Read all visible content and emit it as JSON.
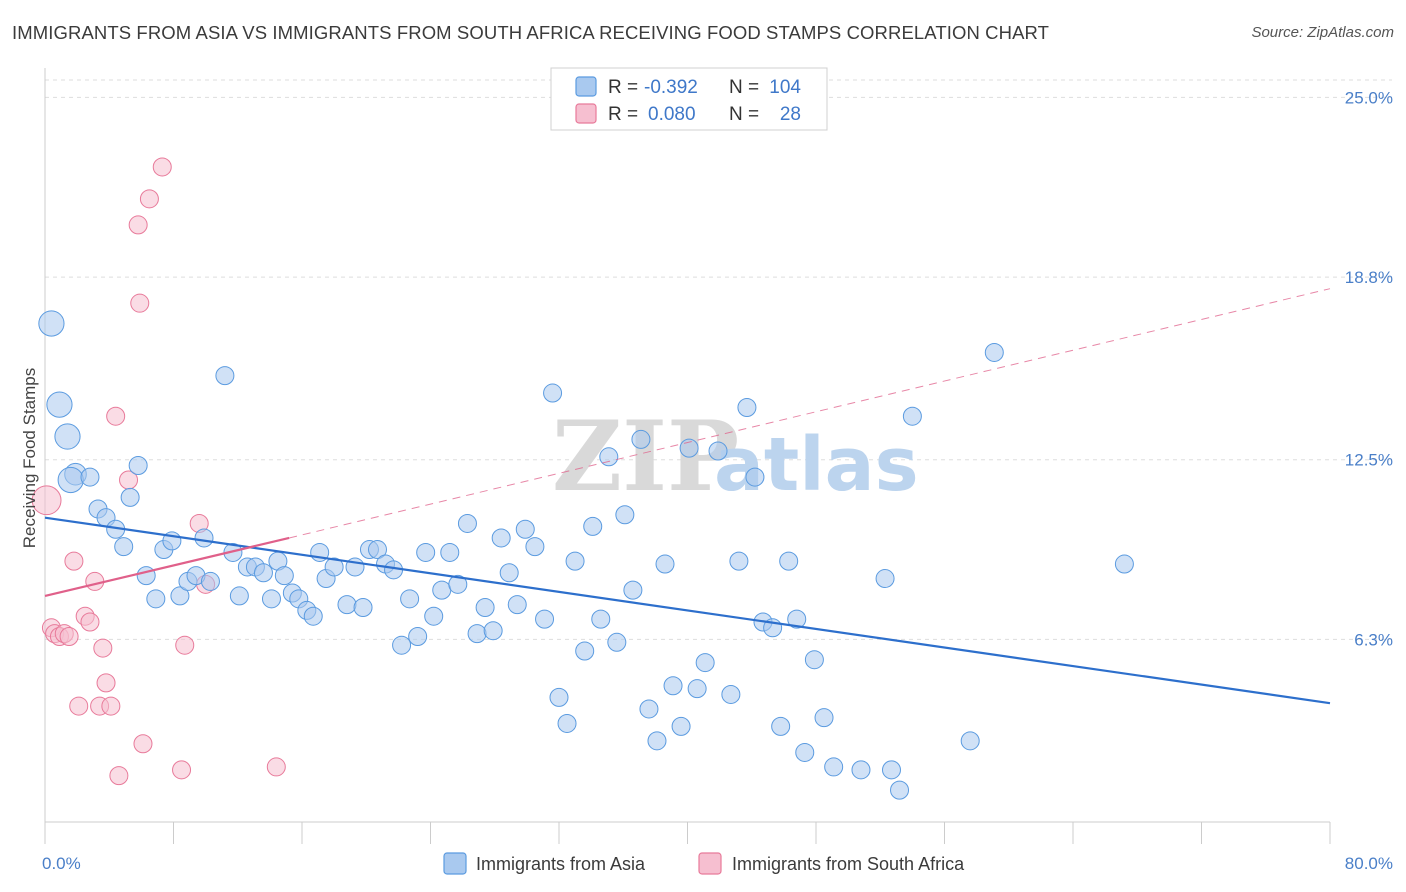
{
  "title": "IMMIGRANTS FROM ASIA VS IMMIGRANTS FROM SOUTH AFRICA RECEIVING FOOD STAMPS CORRELATION CHART",
  "source": "Source: ZipAtlas.com",
  "watermark": {
    "zip": "ZIP",
    "atlas": "atlas"
  },
  "colors": {
    "asia": "#5b9be0",
    "asia_fill": "#a9c9ef",
    "south_africa": "#e87a9a",
    "south_africa_fill": "#f6bfd0",
    "asia_line": "#2d6fcc",
    "sa_line": "#e0608a",
    "tick_text": "#4a7fc8",
    "grid": "#dddddd"
  },
  "legend": {
    "rows": [
      {
        "r_label": "R =",
        "r_value": "-0.392",
        "n_label": "N =",
        "n_value": "104"
      },
      {
        "r_label": "R =",
        "r_value": "0.080",
        "n_label": "N =",
        "n_value": "28"
      }
    ]
  },
  "chart_data": {
    "type": "scatter",
    "xlabel": "",
    "ylabel": "Receiving Food Stamps",
    "xlim": [
      0,
      80
    ],
    "ylim": [
      0,
      25.6
    ],
    "x_tick_labels": [
      {
        "value": 0,
        "label": "0.0%"
      },
      {
        "value": 80,
        "label": "80.0%"
      }
    ],
    "y_tick_labels": [
      {
        "value": 6.3,
        "label": "6.3%"
      },
      {
        "value": 12.5,
        "label": "12.5%"
      },
      {
        "value": 18.8,
        "label": "18.8%"
      },
      {
        "value": 25.0,
        "label": "25.0%"
      }
    ],
    "grid": true,
    "series": [
      {
        "name": "Immigrants from Asia",
        "r": -0.392,
        "n": 104,
        "trend": {
          "x0": 0,
          "y0": 10.5,
          "x1": 80,
          "y1": 4.1
        },
        "points": [
          [
            0.4,
            17.2,
            1.4
          ],
          [
            0.9,
            14.4,
            1.4
          ],
          [
            1.4,
            13.3,
            1.4
          ],
          [
            1.9,
            12.0,
            1.2
          ],
          [
            1.6,
            11.8,
            1.4
          ],
          [
            2.8,
            11.9,
            1.0
          ],
          [
            3.3,
            10.8,
            1.0
          ],
          [
            3.8,
            10.5,
            1.0
          ],
          [
            4.4,
            10.1,
            1.0
          ],
          [
            4.9,
            9.5,
            1.0
          ],
          [
            5.3,
            11.2,
            1.0
          ],
          [
            5.8,
            12.3,
            1.0
          ],
          [
            6.3,
            8.5,
            1.0
          ],
          [
            6.9,
            7.7,
            1.0
          ],
          [
            7.4,
            9.4,
            1.0
          ],
          [
            7.9,
            9.7,
            1.0
          ],
          [
            8.4,
            7.8,
            1.0
          ],
          [
            8.9,
            8.3,
            1.0
          ],
          [
            9.4,
            8.5,
            1.0
          ],
          [
            9.9,
            9.8,
            1.0
          ],
          [
            10.3,
            8.3,
            1.0
          ],
          [
            11.2,
            15.4,
            1.0
          ],
          [
            11.7,
            9.3,
            1.0
          ],
          [
            12.1,
            7.8,
            1.0
          ],
          [
            12.6,
            8.8,
            1.0
          ],
          [
            13.1,
            8.8,
            1.0
          ],
          [
            13.6,
            8.6,
            1.0
          ],
          [
            14.1,
            7.7,
            1.0
          ],
          [
            14.5,
            9.0,
            1.0
          ],
          [
            14.9,
            8.5,
            1.0
          ],
          [
            15.4,
            7.9,
            1.0
          ],
          [
            15.8,
            7.7,
            1.0
          ],
          [
            16.3,
            7.3,
            1.0
          ],
          [
            16.7,
            7.1,
            1.0
          ],
          [
            17.1,
            9.3,
            1.0
          ],
          [
            17.5,
            8.4,
            1.0
          ],
          [
            18.0,
            8.8,
            1.0
          ],
          [
            18.8,
            7.5,
            1.0
          ],
          [
            19.3,
            8.8,
            1.0
          ],
          [
            19.8,
            7.4,
            1.0
          ],
          [
            20.2,
            9.4,
            1.0
          ],
          [
            20.7,
            9.4,
            1.0
          ],
          [
            21.2,
            8.9,
            1.0
          ],
          [
            21.7,
            8.7,
            1.0
          ],
          [
            22.2,
            6.1,
            1.0
          ],
          [
            22.7,
            7.7,
            1.0
          ],
          [
            23.2,
            6.4,
            1.0
          ],
          [
            23.7,
            9.3,
            1.0
          ],
          [
            24.2,
            7.1,
            1.0
          ],
          [
            24.7,
            8.0,
            1.0
          ],
          [
            25.2,
            9.3,
            1.0
          ],
          [
            25.7,
            8.2,
            1.0
          ],
          [
            26.3,
            10.3,
            1.0
          ],
          [
            26.9,
            6.5,
            1.0
          ],
          [
            27.4,
            7.4,
            1.0
          ],
          [
            27.9,
            6.6,
            1.0
          ],
          [
            28.4,
            9.8,
            1.0
          ],
          [
            28.9,
            8.6,
            1.0
          ],
          [
            29.4,
            7.5,
            1.0
          ],
          [
            29.9,
            10.1,
            1.0
          ],
          [
            30.5,
            9.5,
            1.0
          ],
          [
            31.1,
            7.0,
            1.0
          ],
          [
            31.6,
            14.8,
            1.0
          ],
          [
            32.0,
            4.3,
            1.0
          ],
          [
            32.5,
            3.4,
            1.0
          ],
          [
            33.0,
            9.0,
            1.0
          ],
          [
            33.6,
            5.9,
            1.0
          ],
          [
            34.1,
            10.2,
            1.0
          ],
          [
            34.6,
            7.0,
            1.0
          ],
          [
            35.1,
            12.6,
            1.0
          ],
          [
            35.6,
            6.2,
            1.0
          ],
          [
            36.1,
            10.6,
            1.0
          ],
          [
            36.6,
            8.0,
            1.0
          ],
          [
            37.1,
            13.2,
            1.0
          ],
          [
            37.6,
            3.9,
            1.0
          ],
          [
            38.1,
            2.8,
            1.0
          ],
          [
            38.6,
            8.9,
            1.0
          ],
          [
            39.1,
            4.7,
            1.0
          ],
          [
            39.6,
            3.3,
            1.0
          ],
          [
            40.1,
            12.9,
            1.0
          ],
          [
            40.6,
            4.6,
            1.0
          ],
          [
            41.1,
            5.5,
            1.0
          ],
          [
            41.9,
            12.8,
            1.0
          ],
          [
            42.7,
            4.4,
            1.0
          ],
          [
            43.2,
            9.0,
            1.0
          ],
          [
            43.7,
            14.3,
            1.0
          ],
          [
            44.2,
            11.9,
            1.0
          ],
          [
            44.7,
            6.9,
            1.0
          ],
          [
            45.3,
            6.7,
            1.0
          ],
          [
            45.8,
            3.3,
            1.0
          ],
          [
            46.3,
            9.0,
            1.0
          ],
          [
            46.8,
            7.0,
            1.0
          ],
          [
            47.3,
            2.4,
            1.0
          ],
          [
            47.9,
            5.6,
            1.0
          ],
          [
            48.5,
            3.6,
            1.0
          ],
          [
            49.1,
            1.9,
            1.0
          ],
          [
            50.8,
            1.8,
            1.0
          ],
          [
            52.3,
            8.4,
            1.0
          ],
          [
            52.7,
            1.8,
            1.0
          ],
          [
            53.2,
            1.1,
            1.0
          ],
          [
            54.0,
            14.0,
            1.0
          ],
          [
            57.6,
            2.8,
            1.0
          ],
          [
            59.1,
            16.2,
            1.0
          ],
          [
            67.2,
            8.9,
            1.0
          ]
        ]
      },
      {
        "name": "Immigrants from South Africa",
        "r": 0.08,
        "n": 28,
        "trend_solid": {
          "x0": 0,
          "y0": 7.8,
          "x1": 15.2,
          "y1": 9.8
        },
        "trend_dashed": {
          "x0": 15.2,
          "y0": 9.8,
          "x1": 80,
          "y1": 18.4
        },
        "points": [
          [
            0.1,
            11.1,
            1.6
          ],
          [
            0.4,
            6.7,
            1.0
          ],
          [
            0.6,
            6.5,
            1.0
          ],
          [
            0.9,
            6.4,
            1.0
          ],
          [
            1.2,
            6.5,
            1.0
          ],
          [
            1.5,
            6.4,
            1.0
          ],
          [
            1.8,
            9.0,
            1.0
          ],
          [
            2.1,
            4.0,
            1.0
          ],
          [
            2.5,
            7.1,
            1.0
          ],
          [
            2.8,
            6.9,
            1.0
          ],
          [
            3.1,
            8.3,
            1.0
          ],
          [
            3.4,
            4.0,
            1.0
          ],
          [
            3.6,
            6.0,
            1.0
          ],
          [
            3.8,
            4.8,
            1.0
          ],
          [
            4.1,
            4.0,
            1.0
          ],
          [
            4.4,
            14.0,
            1.0
          ],
          [
            4.6,
            1.6,
            1.0
          ],
          [
            5.2,
            11.8,
            1.0
          ],
          [
            5.8,
            20.6,
            1.0
          ],
          [
            5.9,
            17.9,
            1.0
          ],
          [
            6.1,
            2.7,
            1.0
          ],
          [
            6.5,
            21.5,
            1.0
          ],
          [
            7.3,
            22.6,
            1.0
          ],
          [
            8.5,
            1.8,
            1.0
          ],
          [
            8.7,
            6.1,
            1.0
          ],
          [
            9.6,
            10.3,
            1.0
          ],
          [
            10.0,
            8.2,
            1.0
          ],
          [
            14.4,
            1.9,
            1.0
          ]
        ]
      }
    ]
  },
  "bottom_legend": [
    "Immigrants from Asia",
    "Immigrants from South Africa"
  ]
}
